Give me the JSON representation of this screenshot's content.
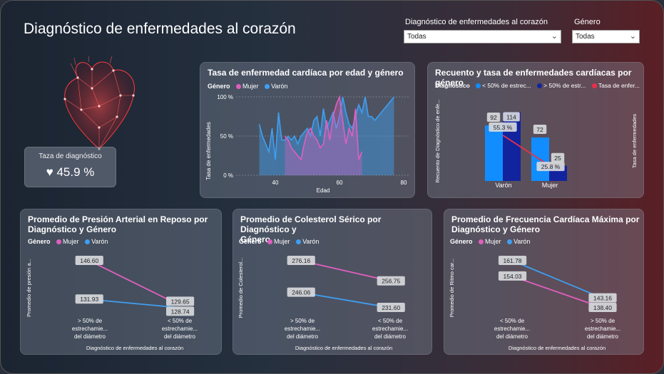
{
  "header": {
    "title": "Diagnóstico de enfermedades al corazón",
    "slicer_diag_label": "Diagnóstico de enfermedades al corazón",
    "slicer_diag_value": "Todas",
    "slicer_gen_label": "Género",
    "slicer_gen_value": "Todas"
  },
  "kpi": {
    "label": "Taza de diagnóstico",
    "icon": "heart-icon",
    "value": "45.9 %"
  },
  "legend_common": {
    "title": "Género",
    "mujer": "Mujer",
    "varon": "Varón",
    "mujer_color": "#e05fbf",
    "varon_color": "#3f9ff2"
  },
  "charts": {
    "age": {
      "title": "Tasa de enfermedad cardíaca por edad y género",
      "ylabel": "Tasa de enfermedades",
      "xlabel": "Edad",
      "yticks": [
        "100 %",
        "50 %",
        "0 %"
      ],
      "xticks": [
        "40",
        "60",
        "80"
      ]
    },
    "count": {
      "title": "Recuento y tasa de enfermedades cardíacas por género",
      "legend_title": "Diagnóstico",
      "legend_1": "< 50% de estrec...",
      "legend_2": "> 50% de estr...",
      "legend_3": "Tasa de enfer...",
      "ylabel_left": "Recuento de Diagnóstico de enfe...",
      "ylabel_right": "Tasa de enfermedades",
      "cat_1": "Varón",
      "cat_2": "Mujer",
      "lbl_v1": "92",
      "lbl_v2": "114",
      "lbl_m1": "72",
      "lbl_m2": "25",
      "rate_v": "55.3 %",
      "rate_m": "25.8 %"
    },
    "bp": {
      "title_1": "Promedio de Presión Arterial en Reposo por",
      "title_2": "Diagnóstico y Género",
      "ylabel": "Promedio de presión a...",
      "xlabel": "Diagnóstico de enfermedades al corazón",
      "cat_a_1": "> 50% de",
      "cat_a_2": "estrechamie...",
      "cat_a_3": "del diámetro",
      "cat_b_1": "< 50% de",
      "cat_b_2": "estrechamie...",
      "cat_b_3": "del diámetro",
      "m1": "146.60",
      "m2": "129.65",
      "v1": "131.93",
      "v2": "128.74"
    },
    "chol": {
      "title_1": "Promedio de Colesterol Sérico por Diagnóstico y",
      "title_2": "Género",
      "ylabel": "Promedio de Colesterol...",
      "xlabel": "Diagnóstico de enfermedades al corazón",
      "cat_a_1": "> 50% de",
      "cat_a_2": "estrechamie...",
      "cat_a_3": "del diámetro",
      "cat_b_1": "< 50% de",
      "cat_b_2": "estrechamie...",
      "cat_b_3": "del diámetro",
      "m1": "276.16",
      "m2": "256.75",
      "v1": "246.06",
      "v2": "231.60"
    },
    "hr": {
      "title_1": "Promedio de Frecuencia Cardíaca Máxima por",
      "title_2": "Diagnóstico y Género",
      "ylabel": "Promedio de Ritmo car...",
      "xlabel": "Diagnóstico de enfermedades al corazón",
      "cat_a_1": "< 50% de",
      "cat_a_2": "estrechamie...",
      "cat_a_3": "del diámetro",
      "cat_b_1": "> 50% de",
      "cat_b_2": "estrechamie...",
      "cat_b_3": "del diámetro",
      "v1": "161.78",
      "m1": "154.03",
      "m2": "138.40",
      "v2": "143.16"
    }
  },
  "chart_data": [
    {
      "type": "area",
      "title": "Tasa de enfermedad cardíaca por edad y género",
      "xlabel": "Edad",
      "ylabel": "Tasa de enfermedades",
      "xlim": [
        35,
        80
      ],
      "ylim": [
        0,
        100
      ],
      "series": [
        {
          "name": "Varón",
          "x": [
            35,
            36,
            37,
            38,
            39,
            40,
            41,
            42,
            43,
            44,
            45,
            46,
            47,
            48,
            49,
            50,
            51,
            52,
            53,
            54,
            55,
            56,
            57,
            58,
            59,
            60,
            61,
            62,
            63,
            64,
            65,
            66,
            67,
            68,
            69,
            70,
            71,
            77
          ],
          "y": [
            65,
            50,
            40,
            30,
            60,
            20,
            80,
            45,
            45,
            50,
            45,
            50,
            40,
            50,
            55,
            60,
            50,
            70,
            75,
            50,
            85,
            60,
            70,
            80,
            60,
            75,
            100,
            80,
            65,
            60,
            75,
            90,
            80,
            100,
            75,
            75,
            70,
            100
          ]
        },
        {
          "name": "Mujer",
          "x": [
            43,
            44,
            45,
            46,
            47,
            48,
            49,
            50,
            51,
            52,
            53,
            54,
            55,
            56,
            57,
            58,
            59,
            60,
            61,
            62,
            63,
            64,
            65,
            66,
            67
          ],
          "y": [
            50,
            45,
            35,
            30,
            25,
            20,
            40,
            55,
            60,
            50,
            45,
            35,
            40,
            70,
            45,
            75,
            90,
            100,
            70,
            40,
            60,
            50,
            85,
            20,
            30
          ]
        }
      ]
    },
    {
      "type": "bar",
      "title": "Recuento y tasa de enfermedades cardíacas por género",
      "categories": [
        "Varón",
        "Mujer"
      ],
      "series": [
        {
          "name": "< 50% de estrec...",
          "values": [
            92,
            72
          ]
        },
        {
          "name": "> 50% de estr...",
          "values": [
            114,
            25
          ]
        },
        {
          "name": "Tasa de enfer...",
          "values": [
            55.3,
            25.8
          ]
        }
      ]
    },
    {
      "type": "line",
      "title": "Promedio de Presión Arterial en Reposo por Diagnóstico y Género",
      "categories": [
        "> 50% de estrechamie... del diámetro",
        "< 50% de estrechamie... del diámetro"
      ],
      "series": [
        {
          "name": "Mujer",
          "values": [
            146.6,
            129.65
          ]
        },
        {
          "name": "Varón",
          "values": [
            131.93,
            128.74
          ]
        }
      ]
    },
    {
      "type": "line",
      "title": "Promedio de Colesterol Sérico por Diagnóstico y Género",
      "categories": [
        "> 50% de estrechamie... del diámetro",
        "< 50% de estrechamie... del diámetro"
      ],
      "series": [
        {
          "name": "Mujer",
          "values": [
            276.16,
            256.75
          ]
        },
        {
          "name": "Varón",
          "values": [
            246.06,
            231.6
          ]
        }
      ]
    },
    {
      "type": "line",
      "title": "Promedio de Frecuencia Cardíaca Máxima por Diagnóstico y Género",
      "categories": [
        "< 50% de estrechamie... del diámetro",
        "> 50% de estrechamie... del diámetro"
      ],
      "series": [
        {
          "name": "Mujer",
          "values": [
            154.03,
            138.4
          ]
        },
        {
          "name": "Varón",
          "values": [
            161.78,
            143.16
          ]
        }
      ]
    }
  ]
}
